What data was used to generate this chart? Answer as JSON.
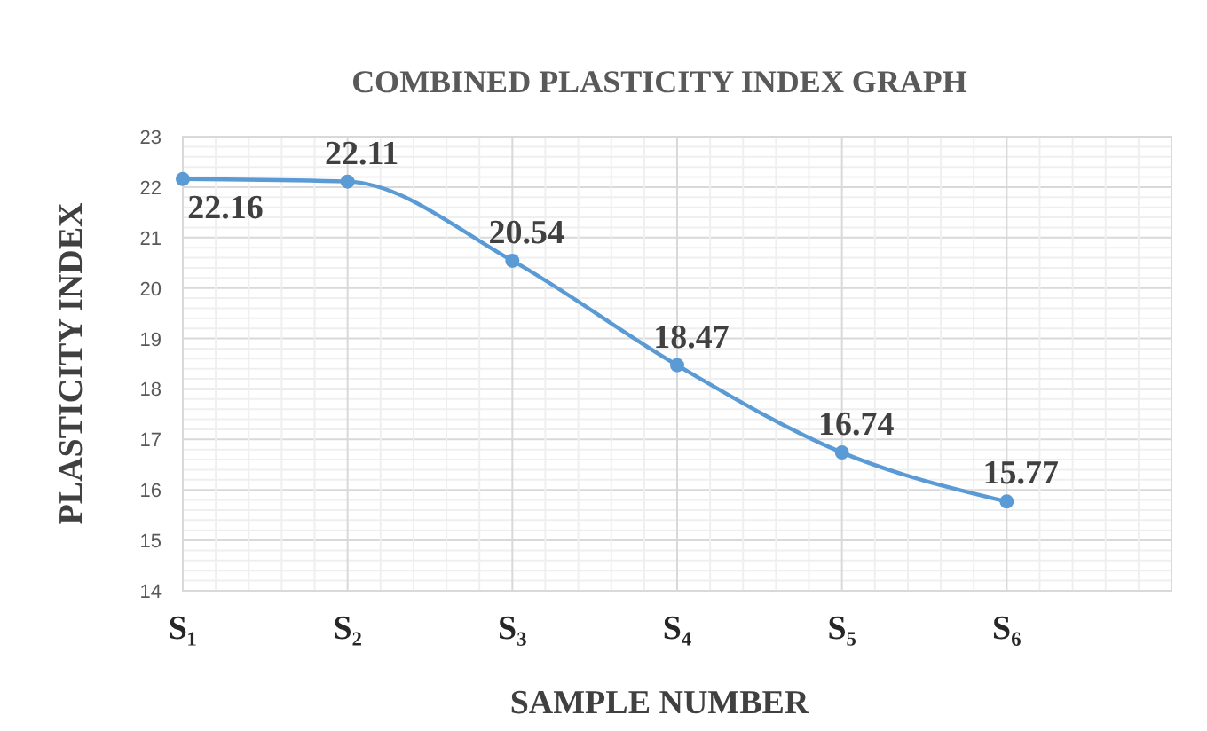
{
  "chart_data": {
    "type": "line",
    "title": "COMBINED PLASTICITY INDEX GRAPH",
    "xlabel": "SAMPLE NUMBER",
    "ylabel": "PLASTICITY INDEX",
    "categories": [
      "S₁",
      "S₂",
      "S₃",
      "S₄",
      "S₅",
      "S₆",
      null
    ],
    "series": [
      {
        "color": "#5b9bd5",
        "values": [
          22.16,
          22.11,
          20.54,
          18.47,
          16.74,
          15.77,
          null
        ]
      }
    ],
    "ylim": [
      14,
      23
    ],
    "yticks": [
      14,
      15,
      16,
      17,
      18,
      19,
      20,
      21,
      22,
      23
    ],
    "grid": true,
    "marker": "circle",
    "line_style": "solid",
    "data_labels": true
  }
}
